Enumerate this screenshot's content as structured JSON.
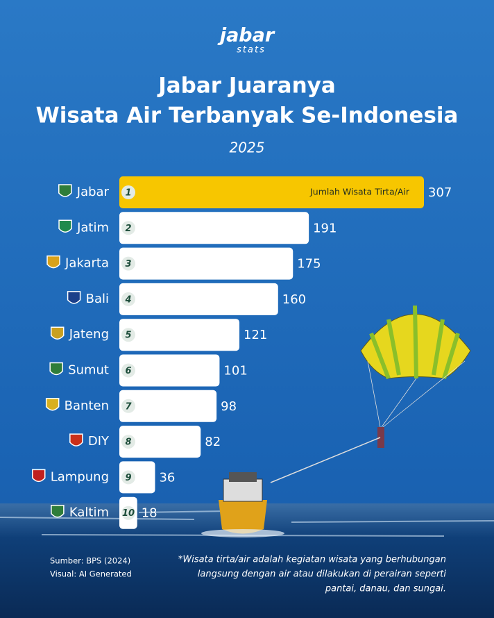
{
  "brand": {
    "name": "jabar",
    "sub": "stats"
  },
  "chart_data": {
    "type": "bar",
    "orientation": "horizontal",
    "title": [
      "Jabar Juaranya",
      "Wisata Air Terbanyak Se-Indonesia"
    ],
    "subtitle": "2025",
    "categories": [
      "Jabar",
      "Jatim",
      "Jakarta",
      "Bali",
      "Jateng",
      "Sumut",
      "Banten",
      "DIY",
      "Lampung",
      "Kaltim"
    ],
    "ranks": [
      1,
      2,
      3,
      4,
      5,
      6,
      7,
      8,
      9,
      10
    ],
    "series": [
      {
        "name": "Jumlah Wisata Tirta/Air",
        "color": "#ffffff",
        "values": [
          307,
          191,
          175,
          160,
          121,
          101,
          98,
          82,
          36,
          18
        ]
      }
    ],
    "colors": [
      "#f7c600",
      "#ffffff",
      "#ffffff",
      "#ffffff",
      "#ffffff",
      "#ffffff",
      "#ffffff",
      "#ffffff",
      "#ffffff",
      "#ffffff"
    ]
  },
  "source": [
    "Sumber: BPS (2024)",
    "Visual: AI Generated"
  ],
  "footnote": [
    "*Wisata tirta/air adalah kegiatan wisata yang berhubungan",
    "langsung dengan air atau dilakukan di perairan seperti",
    "pantai, danau, dan sungai."
  ]
}
